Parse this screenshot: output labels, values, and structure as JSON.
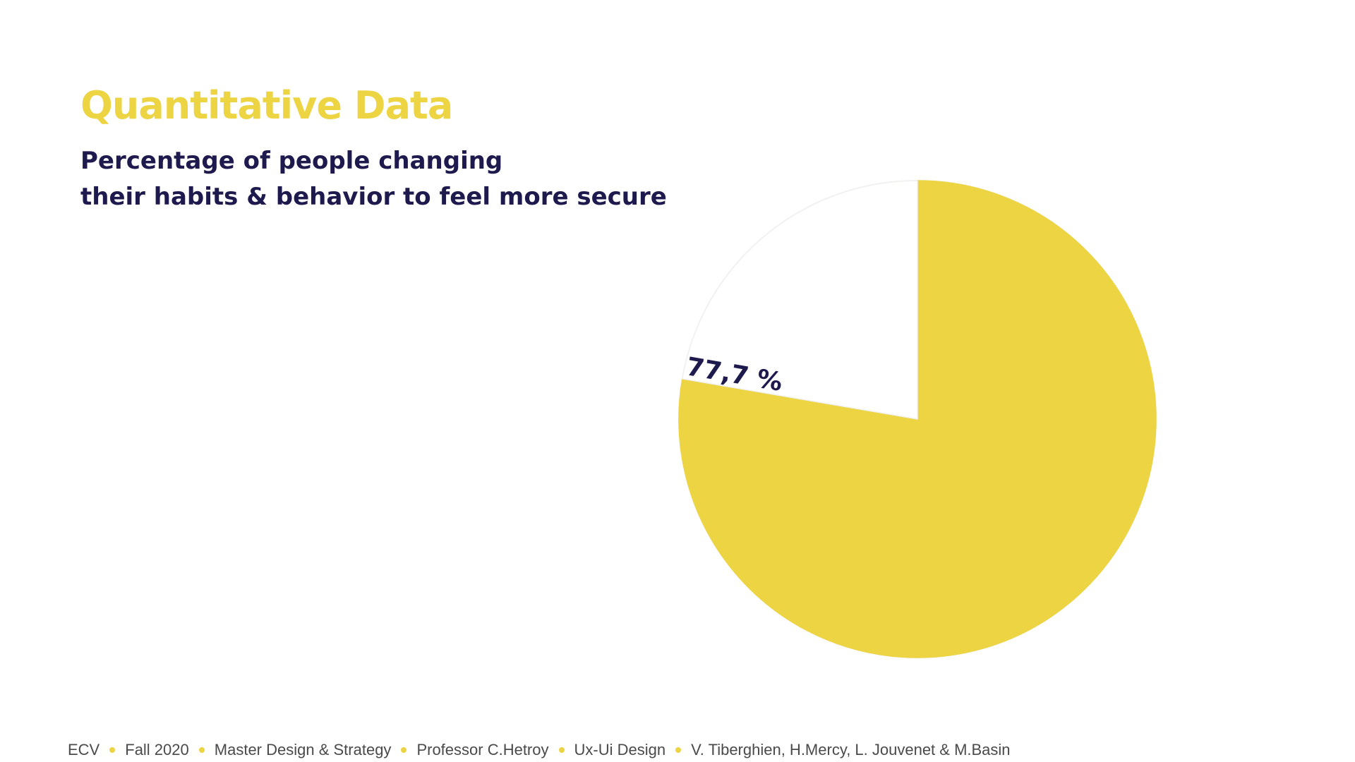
{
  "colors": {
    "accent": "#ecd443",
    "text_dark": "#1e1a4d",
    "background": "#ffffff"
  },
  "slide": {
    "title": "Quantitative Data",
    "subtitle_lines": [
      "Percentage of people changing",
      "their habits & behavior to feel more secure"
    ]
  },
  "chart_data": {
    "type": "pie",
    "slices": [
      {
        "value": 77.7,
        "color": "#ecd443"
      },
      {
        "value": 22.3,
        "color": "#ffffff"
      }
    ],
    "data_label": "77,7 %"
  },
  "footer": {
    "items": [
      "ECV",
      "Fall 2020",
      "Master Design & Strategy",
      "Professor C.Hetroy",
      "Ux-Ui Design",
      "V. Tiberghien, H.Mercy, L. Jouvenet & M.Basin"
    ]
  }
}
